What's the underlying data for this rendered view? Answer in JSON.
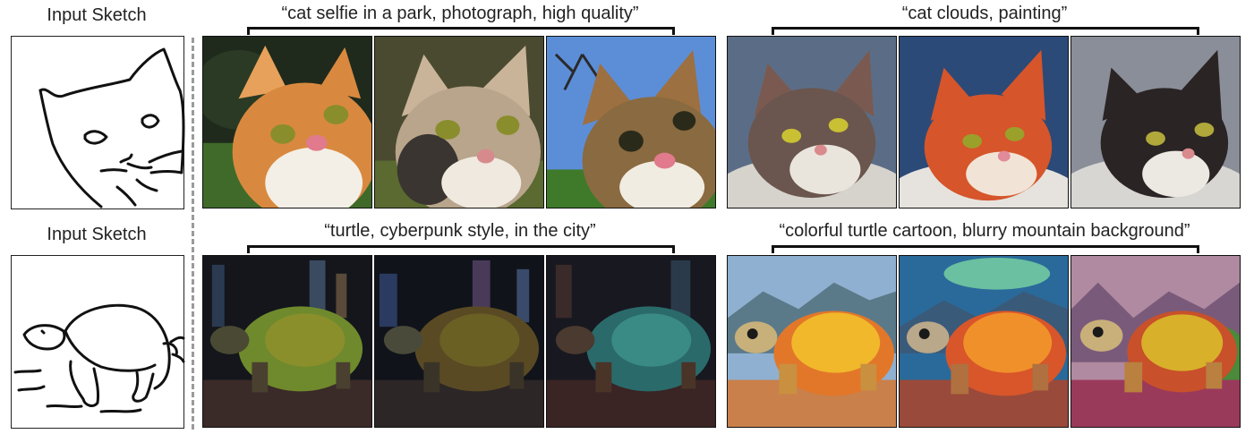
{
  "rows": [
    {
      "input_label": "Input Sketch",
      "sketch_icon": "cat-sketch-icon",
      "groups": [
        {
          "caption": "“cat selfie in a park, photograph, high quality”",
          "images": [
            "cat-photo-park-1",
            "cat-photo-park-2",
            "cat-photo-park-3"
          ]
        },
        {
          "caption": "“cat clouds, painting”",
          "images": [
            "cat-painting-clouds-1",
            "cat-painting-clouds-2",
            "cat-painting-clouds-3"
          ]
        }
      ]
    },
    {
      "input_label": "Input Sketch",
      "sketch_icon": "turtle-sketch-icon",
      "groups": [
        {
          "caption": "“turtle, cyberpunk style, in the city”",
          "images": [
            "turtle-cyberpunk-city-1",
            "turtle-cyberpunk-city-2",
            "turtle-cyberpunk-city-3"
          ]
        },
        {
          "caption": "“colorful turtle cartoon, blurry mountain background”",
          "images": [
            "turtle-cartoon-mountain-1",
            "turtle-cartoon-mountain-2",
            "turtle-cartoon-mountain-3"
          ]
        }
      ]
    }
  ],
  "colors": {
    "park_grass": "#3f6a2a",
    "cat_orange": "#d9893f",
    "sky_blue": "#2b4a78",
    "cyber_dark": "#14161c",
    "shell_green": "#6f8a2c",
    "cartoon_orange": "#e2772a"
  }
}
